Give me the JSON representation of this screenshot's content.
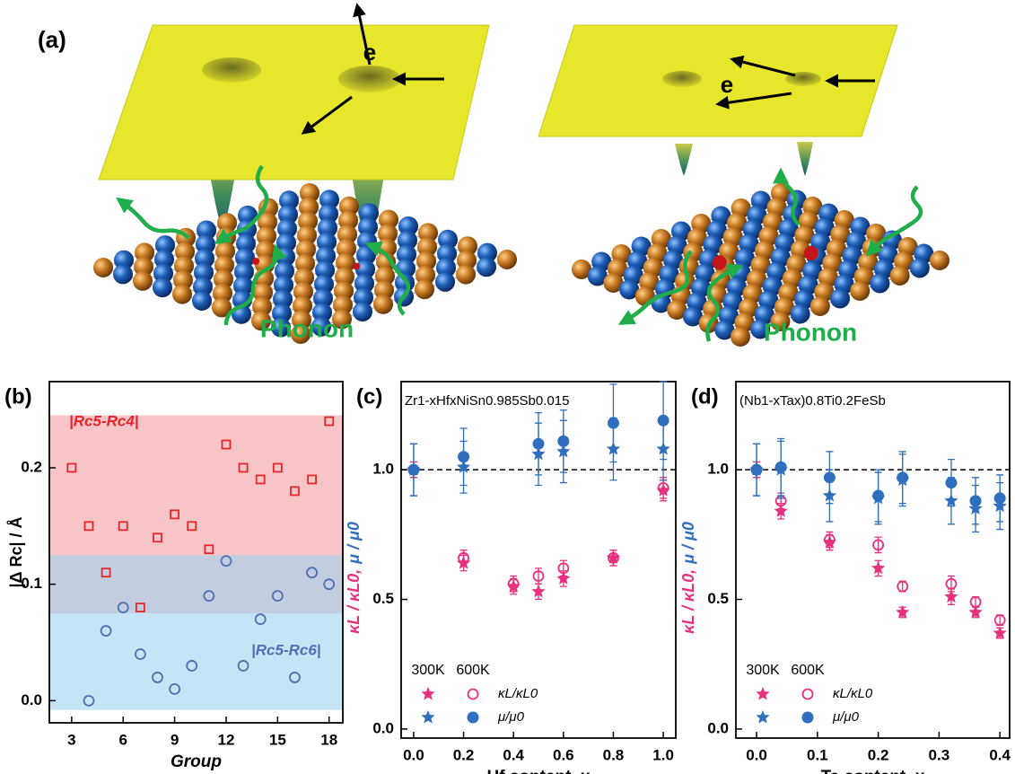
{
  "figure_a": {
    "label": "(a)",
    "electron_labels": [
      "e",
      "e"
    ],
    "phonon_labels": [
      "Phonon",
      "Phonon"
    ]
  },
  "chart_data": [
    {
      "type": "scatter",
      "label": "(b)",
      "xlabel": "Group",
      "ylabel": "|Δ Rc| / Å",
      "xlim": [
        1.7,
        18.8
      ],
      "ylim": [
        -0.019,
        0.274
      ],
      "xticks": [
        3,
        6,
        9,
        12,
        15,
        18
      ],
      "yticks": [
        {
          "value": 0,
          "label": "0.0"
        },
        0.1,
        0.2
      ],
      "shaded_ranges": [
        {
          "color": "#f29ea3",
          "range": [
            0.075,
            0.245
          ]
        },
        {
          "color": "#9fd3f0",
          "range": [
            -0.008,
            0.125
          ]
        }
      ],
      "series": [
        {
          "name": "|Rc5-Rc4|",
          "color": "#e8262a",
          "marker": "open-square",
          "x": [
            3,
            4,
            5,
            6,
            7,
            8,
            9,
            10,
            11,
            12,
            13,
            14,
            15,
            16,
            17,
            18
          ],
          "values": [
            0.2,
            0.15,
            0.11,
            0.15,
            0.08,
            0.14,
            0.16,
            0.15,
            0.13,
            0.22,
            0.2,
            0.19,
            0.2,
            0.18,
            0.19,
            0.24
          ]
        },
        {
          "name": "|Rc5-Rc6|",
          "color": "#4f6fb3",
          "marker": "open-circle",
          "x": [
            4,
            5,
            6,
            7,
            8,
            9,
            10,
            11,
            12,
            13,
            14,
            15,
            16,
            17,
            18
          ],
          "values": [
            0.0,
            0.06,
            0.08,
            0.04,
            0.02,
            0.01,
            0.03,
            0.09,
            0.12,
            0.03,
            0.07,
            0.09,
            0.02,
            0.11,
            0.1
          ]
        }
      ]
    },
    {
      "type": "scatter",
      "label": "(c)",
      "title": "Zr1-xHfxNiSn0.985Sb0.015",
      "xlabel": "Hf content, x",
      "ylabel": [
        "κL / κL0,",
        "μ / μ0"
      ],
      "xlim": [
        -0.05,
        1.05
      ],
      "ylim": [
        -0.035,
        1.34
      ],
      "xticks": [
        {
          "value": 0,
          "label": "0.0"
        },
        0.2,
        0.4,
        0.6,
        0.8,
        {
          "value": 1,
          "label": "1.0"
        }
      ],
      "yticks": [
        {
          "value": 0,
          "label": "0.0"
        },
        0.5,
        {
          "value": 1,
          "label": "1.0"
        }
      ],
      "reference_line": 1,
      "legend": {
        "columns": [
          "300K",
          "600K"
        ],
        "rows": [
          "κL/κL0",
          "μ/μ0"
        ]
      },
      "series": [
        {
          "color": "#e8317e",
          "marker": "star",
          "x": [
            0,
            0.2,
            0.4,
            0.5,
            0.6,
            0.8,
            1.0
          ],
          "values": [
            1.0,
            0.64,
            0.55,
            0.53,
            0.58,
            0.66,
            0.92
          ],
          "errors": [
            0.03,
            0.03,
            0.03,
            0.03,
            0.03,
            0.03,
            0.04
          ]
        },
        {
          "color": "#e8317e",
          "marker": "open-circle",
          "x": [
            0,
            0.2,
            0.4,
            0.5,
            0.6,
            0.8,
            1.0
          ],
          "values": [
            1.0,
            0.66,
            0.56,
            0.59,
            0.62,
            0.66,
            0.93
          ],
          "errors": [
            0.03,
            0.03,
            0.03,
            0.03,
            0.03,
            0.03,
            0.04
          ]
        },
        {
          "color": "#2f6fbd",
          "marker": "star",
          "x": [
            0,
            0.2,
            0.5,
            0.6,
            0.8,
            1.0
          ],
          "values": [
            1.0,
            1.01,
            1.06,
            1.07,
            1.08,
            1.08
          ],
          "errors": [
            0.1,
            0.1,
            0.12,
            0.12,
            0.12,
            0.12
          ]
        },
        {
          "color": "#2f6fbd",
          "marker": "circle",
          "x": [
            0,
            0.2,
            0.5,
            0.6,
            0.8,
            1.0
          ],
          "values": [
            1.0,
            1.05,
            1.1,
            1.11,
            1.18,
            1.19
          ],
          "errors": [
            0.1,
            0.11,
            0.12,
            0.12,
            0.15,
            0.15
          ]
        }
      ]
    },
    {
      "type": "scatter",
      "label": "(d)",
      "title": "(Nb1-xTax)0.8Ti0.2FeSb",
      "xlabel": "Ta content, x",
      "ylabel": [
        "κL / κL0,",
        "μ / μ0"
      ],
      "xlim": [
        -0.034,
        0.416
      ],
      "ylim": [
        -0.035,
        1.34
      ],
      "xticks": [
        {
          "value": 0,
          "label": "0.0"
        },
        0.1,
        0.2,
        0.3,
        0.4
      ],
      "yticks": [
        {
          "value": 0,
          "label": "0.0"
        },
        0.5,
        {
          "value": 1,
          "label": "1.0"
        }
      ],
      "reference_line": 1,
      "legend": {
        "columns": [
          "300K",
          "600K"
        ],
        "rows": [
          "κL/κL0",
          "μ/μ0"
        ]
      },
      "series": [
        {
          "color": "#e8317e",
          "marker": "star",
          "x": [
            0,
            0.04,
            0.12,
            0.2,
            0.24,
            0.32,
            0.36,
            0.4
          ],
          "values": [
            1.0,
            0.84,
            0.72,
            0.62,
            0.45,
            0.51,
            0.45,
            0.37
          ],
          "errors": [
            0.03,
            0.03,
            0.03,
            0.03,
            0.02,
            0.03,
            0.02,
            0.02
          ]
        },
        {
          "color": "#e8317e",
          "marker": "open-circle",
          "x": [
            0,
            0.04,
            0.12,
            0.2,
            0.24,
            0.32,
            0.36,
            0.4
          ],
          "values": [
            1.0,
            0.88,
            0.73,
            0.71,
            0.55,
            0.56,
            0.49,
            0.42
          ],
          "errors": [
            0.03,
            0.03,
            0.03,
            0.03,
            0.02,
            0.03,
            0.02,
            0.02
          ]
        },
        {
          "color": "#2f6fbd",
          "marker": "star",
          "x": [
            0,
            0.04,
            0.12,
            0.2,
            0.24,
            0.32,
            0.36,
            0.4
          ],
          "values": [
            1.0,
            1.0,
            0.9,
            0.89,
            0.96,
            0.88,
            0.85,
            0.86
          ],
          "errors": [
            0.1,
            0.11,
            0.1,
            0.1,
            0.1,
            0.09,
            0.09,
            0.09
          ]
        },
        {
          "color": "#2f6fbd",
          "marker": "circle",
          "x": [
            0,
            0.04,
            0.12,
            0.2,
            0.24,
            0.32,
            0.36,
            0.4
          ],
          "values": [
            1.0,
            1.01,
            0.97,
            0.9,
            0.97,
            0.95,
            0.88,
            0.89
          ],
          "errors": [
            0.1,
            0.11,
            0.1,
            0.1,
            0.1,
            0.09,
            0.09,
            0.09
          ]
        }
      ]
    }
  ]
}
